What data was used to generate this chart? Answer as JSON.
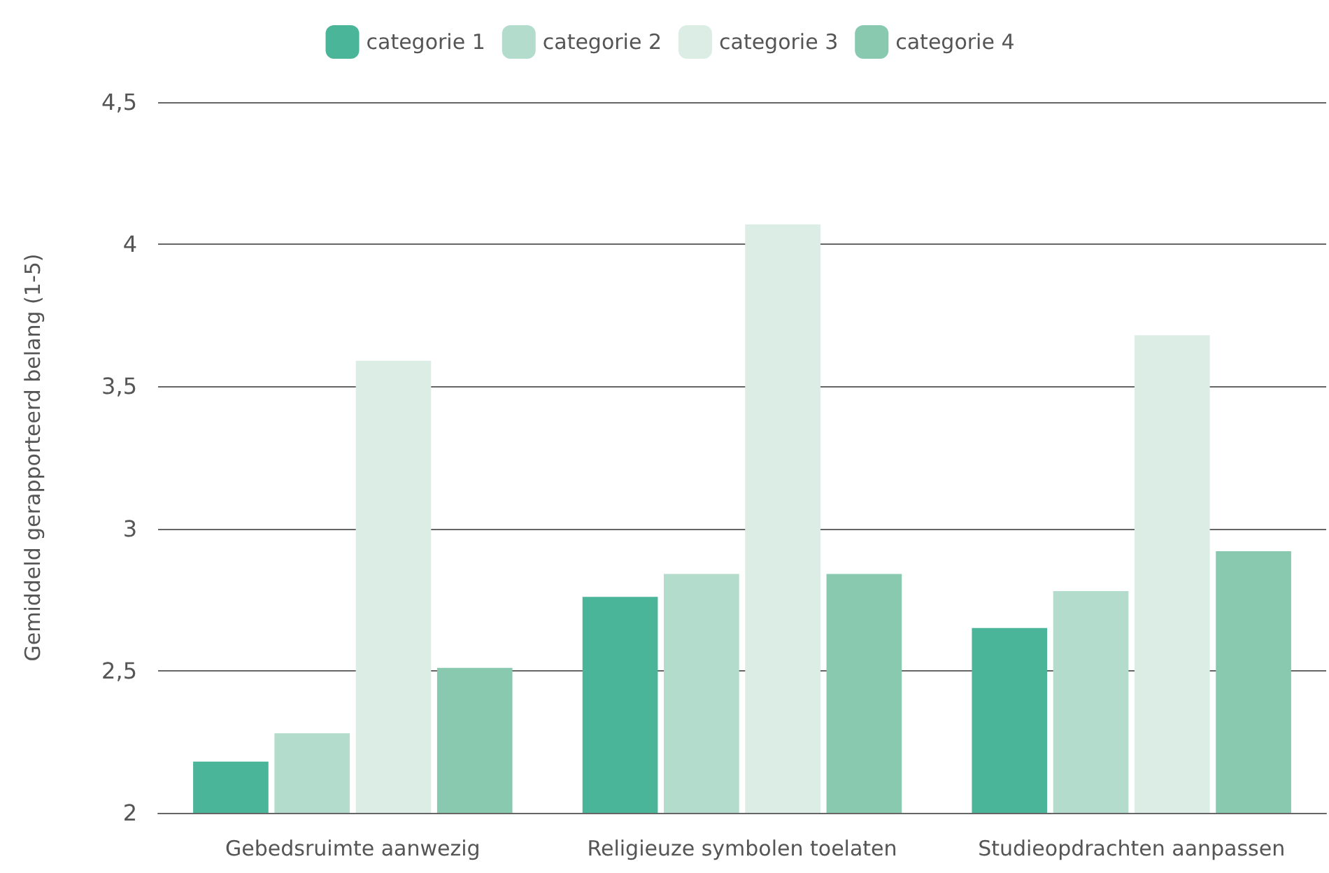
{
  "chart_data": {
    "type": "bar",
    "ylabel": "Gemiddeld gerapporteerd belang (1-5)",
    "categories": [
      "Gebedsruimte aanwezig",
      "Religieuze symbolen toelaten",
      "Studieopdrachten aanpassen"
    ],
    "series": [
      {
        "name": "categorie 1",
        "color": "#4bb59a",
        "values": [
          2.18,
          2.76,
          2.65
        ]
      },
      {
        "name": "categorie 2",
        "color": "#b3dccd",
        "values": [
          2.28,
          2.84,
          2.78
        ]
      },
      {
        "name": "categorie 3",
        "color": "#dcede6",
        "values": [
          3.59,
          4.07,
          3.68
        ]
      },
      {
        "name": "categorie 4",
        "color": "#88c9b0",
        "values": [
          2.51,
          2.84,
          2.92
        ]
      }
    ],
    "ylim": [
      2,
      4.5
    ],
    "yticks": [
      2,
      {
        "value": 2.5,
        "label": "2,5"
      },
      3,
      {
        "value": 3.5,
        "label": "3,5"
      },
      4,
      {
        "value": 4.5,
        "label": "4,5"
      }
    ],
    "grid": "y",
    "legend": "top"
  }
}
